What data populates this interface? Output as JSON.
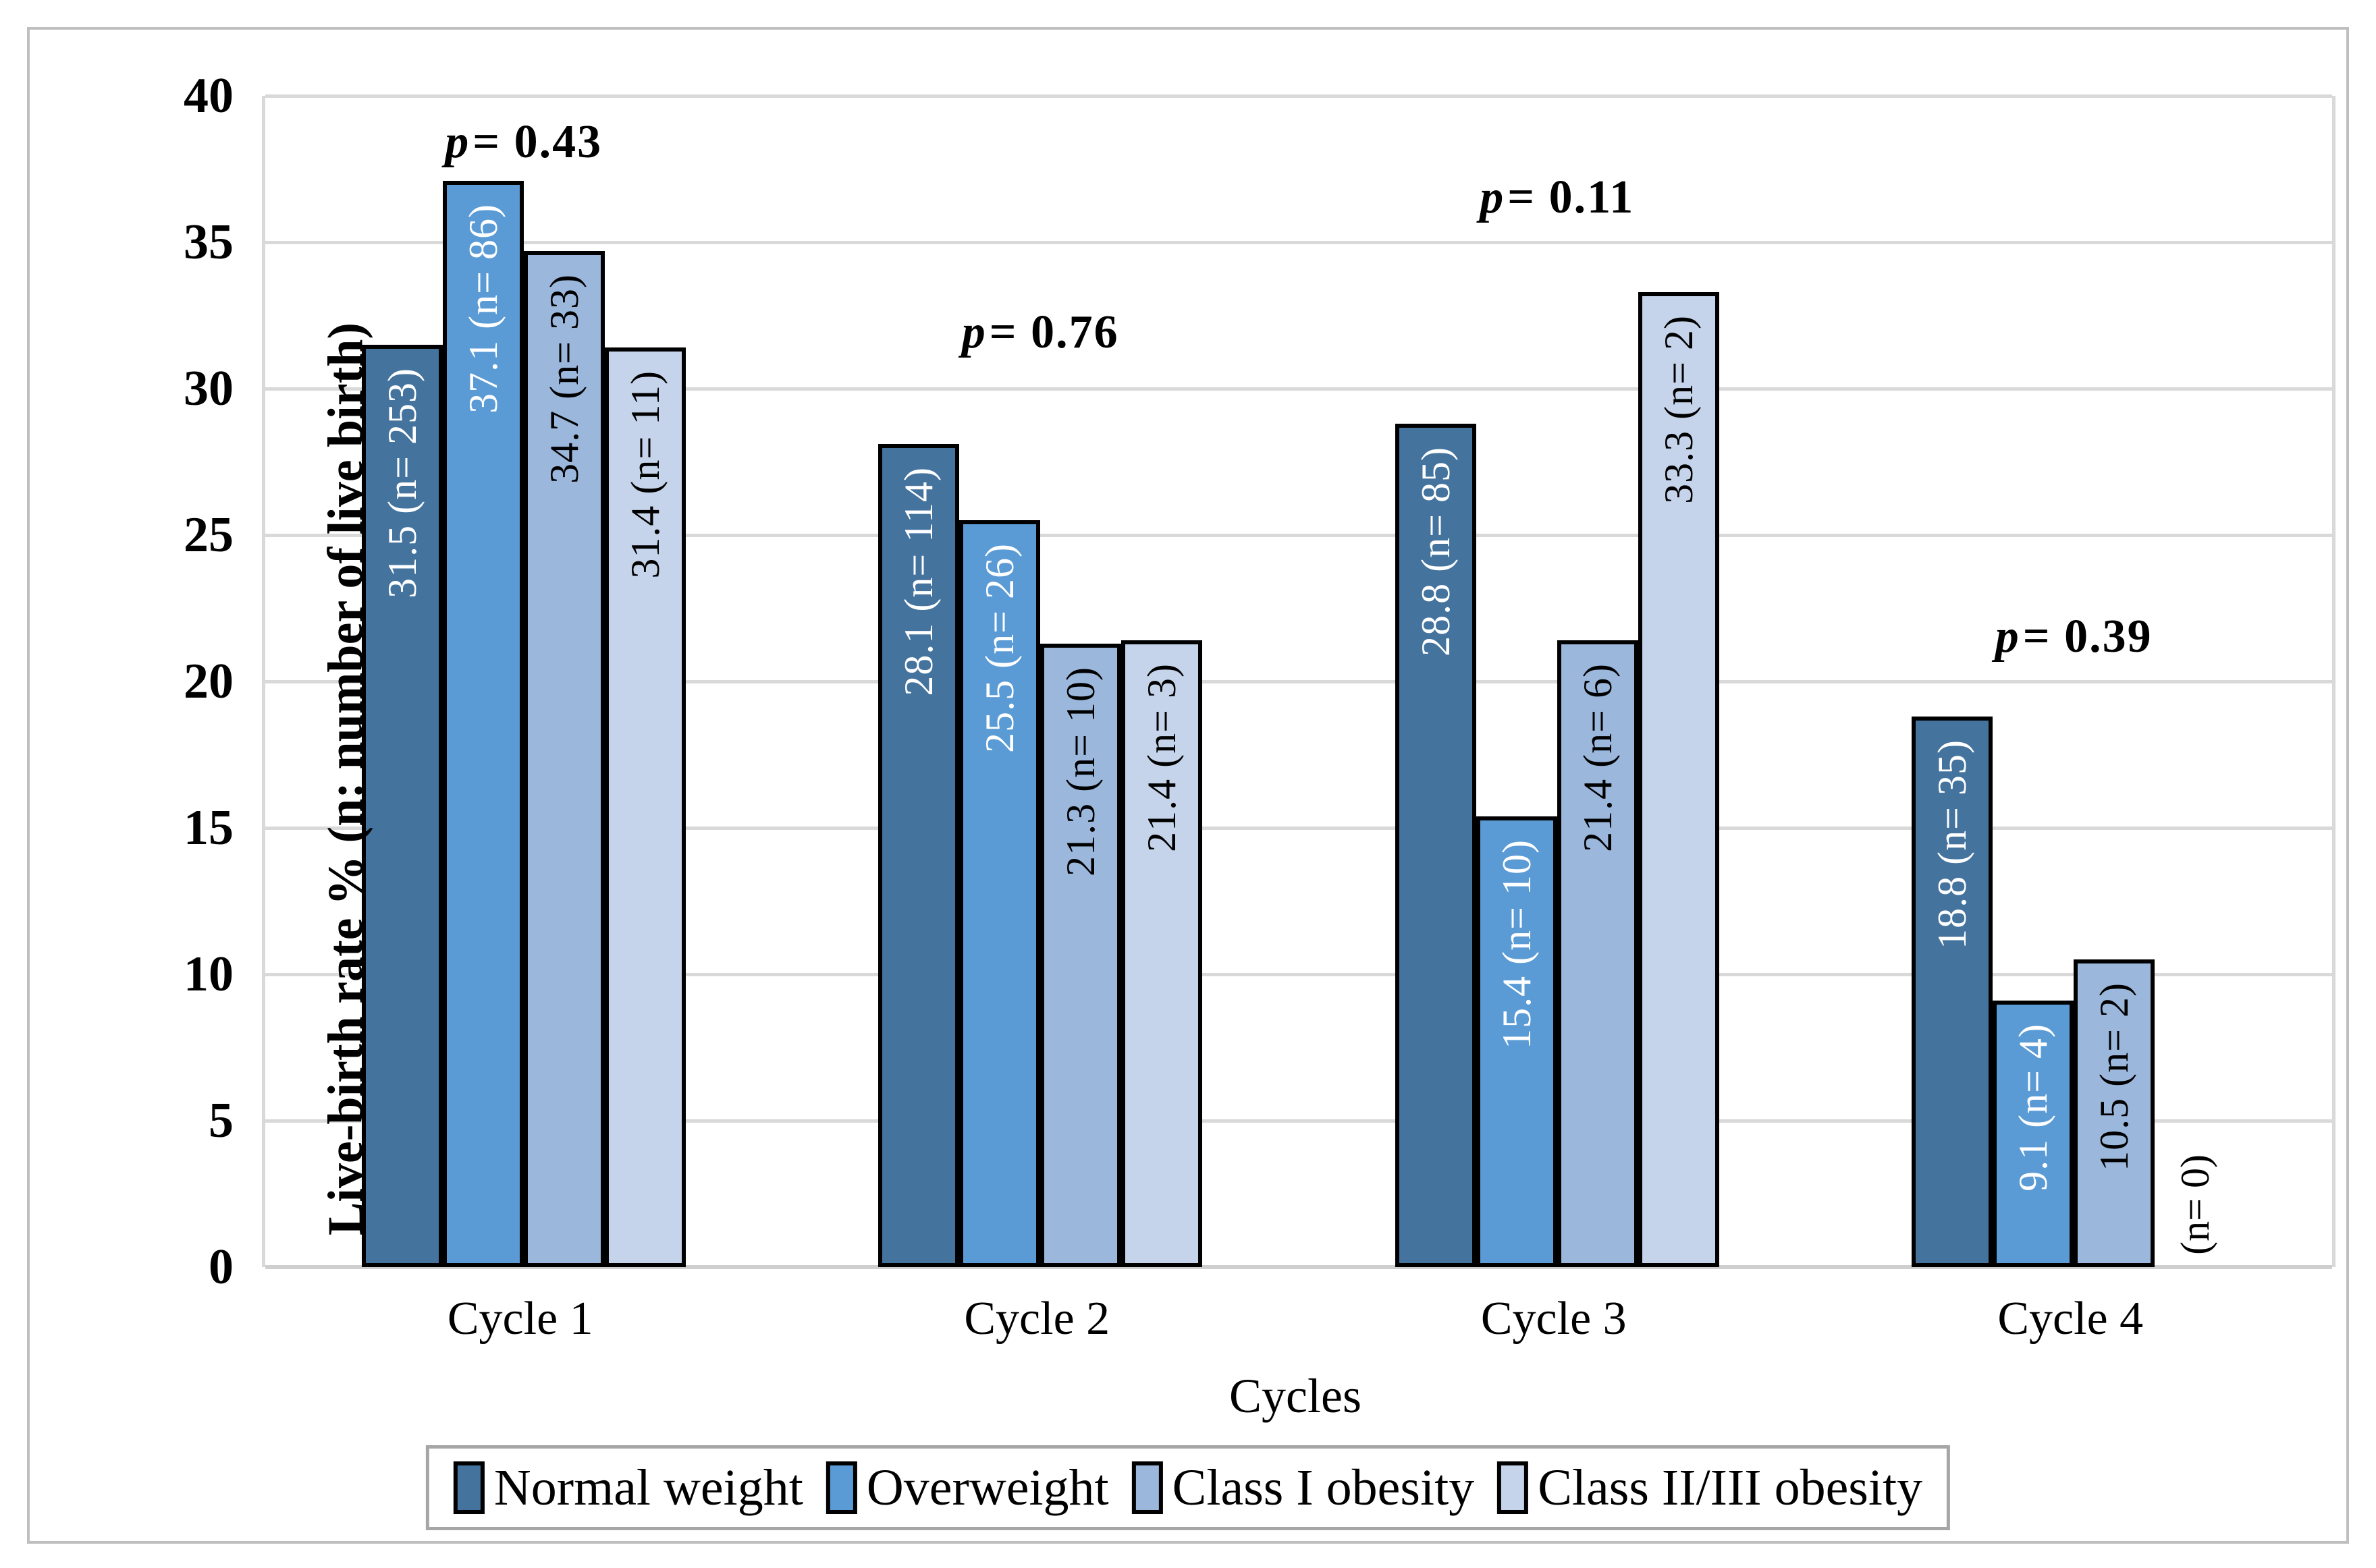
{
  "figure": {
    "background": "#ffffff",
    "border_color": "#bfbfbf",
    "gridline_color": "#d9d9d9",
    "legend_border_color": "#a6a6a6",
    "bar_outline_color": "#000000"
  },
  "chart_data": {
    "type": "bar",
    "title": "",
    "xlabel": "Cycles",
    "ylabel": "Live-birth rate % (n: number of live birth)",
    "ylim": [
      0,
      40
    ],
    "yticks": [
      0,
      5,
      10,
      15,
      20,
      25,
      30,
      35,
      40
    ],
    "grid": "horizontal",
    "legend_position": "bottom",
    "categories": [
      "Cycle 1",
      "Cycle 2",
      "Cycle 3",
      "Cycle 4"
    ],
    "series": [
      {
        "name": "Normal weight",
        "color": "#44739E",
        "label_color": "#ffffff",
        "values": [
          31.5,
          28.1,
          28.8,
          18.8
        ],
        "counts": [
          253,
          114,
          85,
          35
        ],
        "bar_labels": [
          "31.5 (n= 253)",
          "28.1 (n= 114)",
          "28.8 (n= 85)",
          "18.8 (n= 35)"
        ]
      },
      {
        "name": "Overweight",
        "color": "#5B9BD5",
        "label_color": "#ffffff",
        "values": [
          37.1,
          25.5,
          15.4,
          9.1
        ],
        "counts": [
          86,
          26,
          10,
          4
        ],
        "bar_labels": [
          "37.1 (n= 86)",
          "25.5 (n= 26)",
          "15.4 (n= 10)",
          "9.1 (n= 4)"
        ]
      },
      {
        "name": "Class I obesity",
        "color": "#9BB7DC",
        "label_color": "#000000",
        "values": [
          34.7,
          21.3,
          21.4,
          10.5
        ],
        "counts": [
          33,
          10,
          6,
          2
        ],
        "bar_labels": [
          "34.7 (n= 33)",
          "21.3 (n= 10)",
          "21.4 (n= 6)",
          "10.5 (n= 2)"
        ]
      },
      {
        "name": "Class II/III obesity",
        "color": "#C5D4EA",
        "label_color": "#000000",
        "values": [
          31.4,
          21.4,
          33.3,
          0
        ],
        "counts": [
          11,
          3,
          2,
          0
        ],
        "bar_labels": [
          "31.4 (n= 11)",
          "21.4 (n= 3)",
          "33.3 (n= 2)",
          "(n= 0)"
        ]
      }
    ],
    "p_values": [
      {
        "category": "Cycle 1",
        "text": "p= 0.43",
        "value": 0.43,
        "y_units": 38.3
      },
      {
        "category": "Cycle 2",
        "text": "p= 0.76",
        "value": 0.76,
        "y_units": 31.8
      },
      {
        "category": "Cycle 3",
        "text": "p= 0.11",
        "value": 0.11,
        "y_units": 36.4
      },
      {
        "category": "Cycle 4",
        "text": "p= 0.39",
        "value": 0.39,
        "y_units": 21.4
      }
    ]
  }
}
